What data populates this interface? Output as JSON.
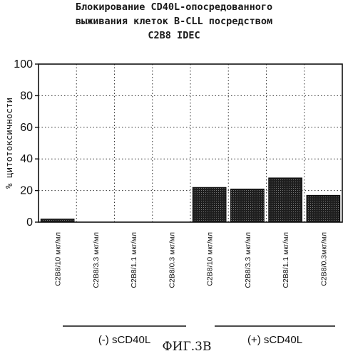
{
  "chart_data": {
    "type": "bar",
    "title_lines": [
      "Блокирование CD40L-опосредованного",
      "выживания клеток B-CLL посредством",
      "C2B8 IDEC"
    ],
    "ylabel": "% цитотоксичности",
    "xlabel": "",
    "ylim": [
      0,
      100
    ],
    "yticks": [
      0,
      20,
      40,
      60,
      80,
      100
    ],
    "grid": true,
    "categories": [
      "C2B8/10 мкг/мл",
      "C2B8/3.3 мкг/мл",
      "C2B8/1.1 мкг/мл",
      "C2B8/0.3 мкг/мл",
      "C2B8/10 мкг/мл",
      "C2B8/3.3 мкг/мл",
      "C2B8/1.1 мкг/мл",
      "C2B8/0.3мкг/мл"
    ],
    "values": [
      2,
      0,
      0,
      0,
      22,
      21,
      28,
      17
    ],
    "groups": [
      {
        "label": "(-) sCD40L",
        "categories": [
          0,
          1,
          2,
          3
        ]
      },
      {
        "label": "(+) sCD40L",
        "categories": [
          4,
          5,
          6,
          7
        ]
      }
    ],
    "bar_color": "#2a2a2a"
  },
  "figure_label": "ФИГ.3В"
}
